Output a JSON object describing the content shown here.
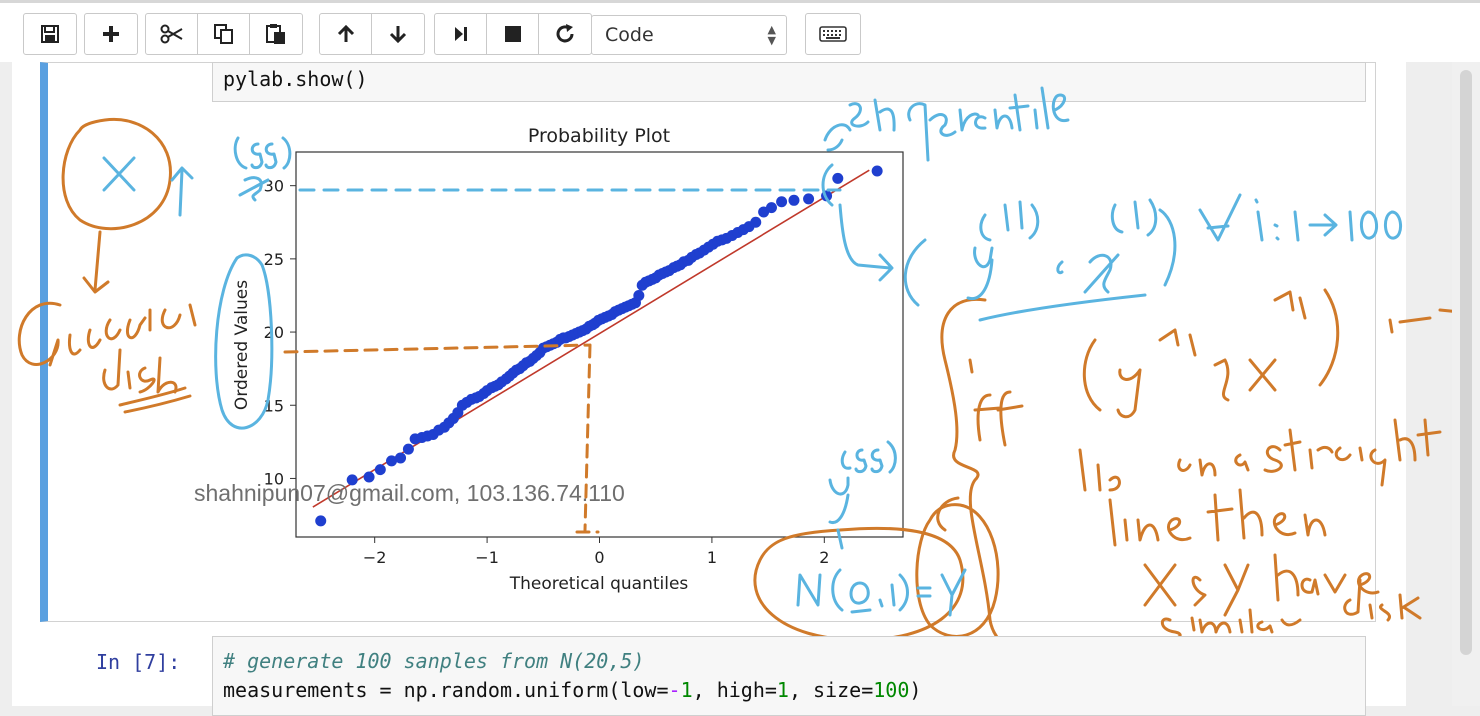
{
  "toolbar": {
    "cell_type": "Code",
    "icons": [
      "save-icon",
      "plus-icon",
      "cut-icon",
      "copy-icon",
      "paste-icon",
      "arrow-up-icon",
      "arrow-down-icon",
      "step-icon",
      "stop-icon",
      "restart-icon",
      "keyboard-icon"
    ]
  },
  "cell_prev": {
    "code": "pylab.show()"
  },
  "cell_next": {
    "prompt": "In [7]:",
    "comment": "# generate 100 sanples from N(20,5)",
    "line2_a": "measurements = np.random.uniform(low=",
    "line2_minus": "-",
    "line2_one": "1",
    "line2_b": ", high=",
    "line2_one_b": "1",
    "line2_c": ", size=",
    "line2_size": "100",
    "line2_end": ")"
  },
  "watermark": "shahnipun07@gmail.com, 103.136.74.110",
  "chart_data": {
    "type": "scatter",
    "title": "Probability Plot",
    "xlabel": "Theoretical quantiles",
    "ylabel": "Ordered Values",
    "xlim": [
      -2.7,
      2.7
    ],
    "ylim": [
      6,
      32.3
    ],
    "xticks": [
      -2,
      -1,
      0,
      1,
      2
    ],
    "yticks": [
      10,
      15,
      20,
      25,
      30
    ],
    "xtick_labels": [
      "−2",
      "−1",
      "0",
      "1",
      "2"
    ],
    "ytick_labels": [
      "10",
      "15",
      "20",
      "25",
      "30"
    ],
    "fit_line": {
      "slope": 4.65,
      "intercept": 19.9
    },
    "x": [
      -2.48,
      -2.2,
      -2.05,
      -1.95,
      -1.85,
      -1.77,
      -1.7,
      -1.64,
      -1.58,
      -1.53,
      -1.48,
      -1.43,
      -1.38,
      -1.34,
      -1.3,
      -1.26,
      -1.22,
      -1.18,
      -1.14,
      -1.1,
      -1.07,
      -1.03,
      -1.0,
      -0.96,
      -0.93,
      -0.9,
      -0.87,
      -0.83,
      -0.8,
      -0.77,
      -0.74,
      -0.71,
      -0.68,
      -0.65,
      -0.62,
      -0.59,
      -0.56,
      -0.53,
      -0.5,
      -0.47,
      -0.44,
      -0.41,
      -0.38,
      -0.35,
      -0.32,
      -0.3,
      -0.27,
      -0.24,
      -0.21,
      -0.18,
      -0.15,
      -0.12,
      -0.09,
      -0.06,
      -0.04,
      -0.01,
      0.02,
      0.05,
      0.08,
      0.11,
      0.14,
      0.17,
      0.2,
      0.23,
      0.26,
      0.29,
      0.32,
      0.35,
      0.38,
      0.41,
      0.44,
      0.47,
      0.5,
      0.53,
      0.56,
      0.59,
      0.62,
      0.66,
      0.69,
      0.72,
      0.75,
      0.79,
      0.82,
      0.86,
      0.89,
      0.93,
      0.97,
      1.01,
      1.05,
      1.09,
      1.13,
      1.18,
      1.23,
      1.28,
      1.33,
      1.39,
      1.46,
      1.53,
      1.62,
      1.73,
      1.86,
      2.02,
      2.12,
      2.47
    ],
    "y": [
      7.1,
      9.9,
      10.1,
      10.6,
      11.2,
      11.4,
      12.0,
      12.7,
      12.8,
      12.9,
      13.0,
      13.3,
      13.5,
      13.8,
      14.1,
      14.5,
      15.0,
      15.2,
      15.4,
      15.5,
      15.6,
      15.8,
      16.0,
      16.2,
      16.3,
      16.4,
      16.6,
      16.8,
      17.0,
      17.2,
      17.4,
      17.5,
      17.7,
      17.9,
      18.0,
      18.2,
      18.4,
      18.6,
      18.9,
      19.0,
      19.1,
      19.2,
      19.3,
      19.5,
      19.6,
      19.6,
      19.7,
      19.8,
      19.9,
      20.0,
      20.1,
      20.2,
      20.4,
      20.5,
      20.6,
      20.8,
      20.9,
      21.0,
      21.1,
      21.2,
      21.4,
      21.5,
      21.6,
      21.7,
      21.8,
      21.9,
      22.0,
      22.5,
      23.2,
      23.4,
      23.5,
      23.6,
      23.7,
      23.9,
      24.0,
      24.1,
      24.2,
      24.4,
      24.5,
      24.6,
      24.8,
      24.9,
      25.1,
      25.3,
      25.4,
      25.6,
      25.8,
      26.0,
      26.2,
      26.3,
      26.4,
      26.6,
      26.8,
      27.0,
      27.2,
      27.5,
      28.2,
      28.5,
      28.9,
      29.0,
      29.1,
      29.3,
      30.5,
      31.0
    ]
  }
}
